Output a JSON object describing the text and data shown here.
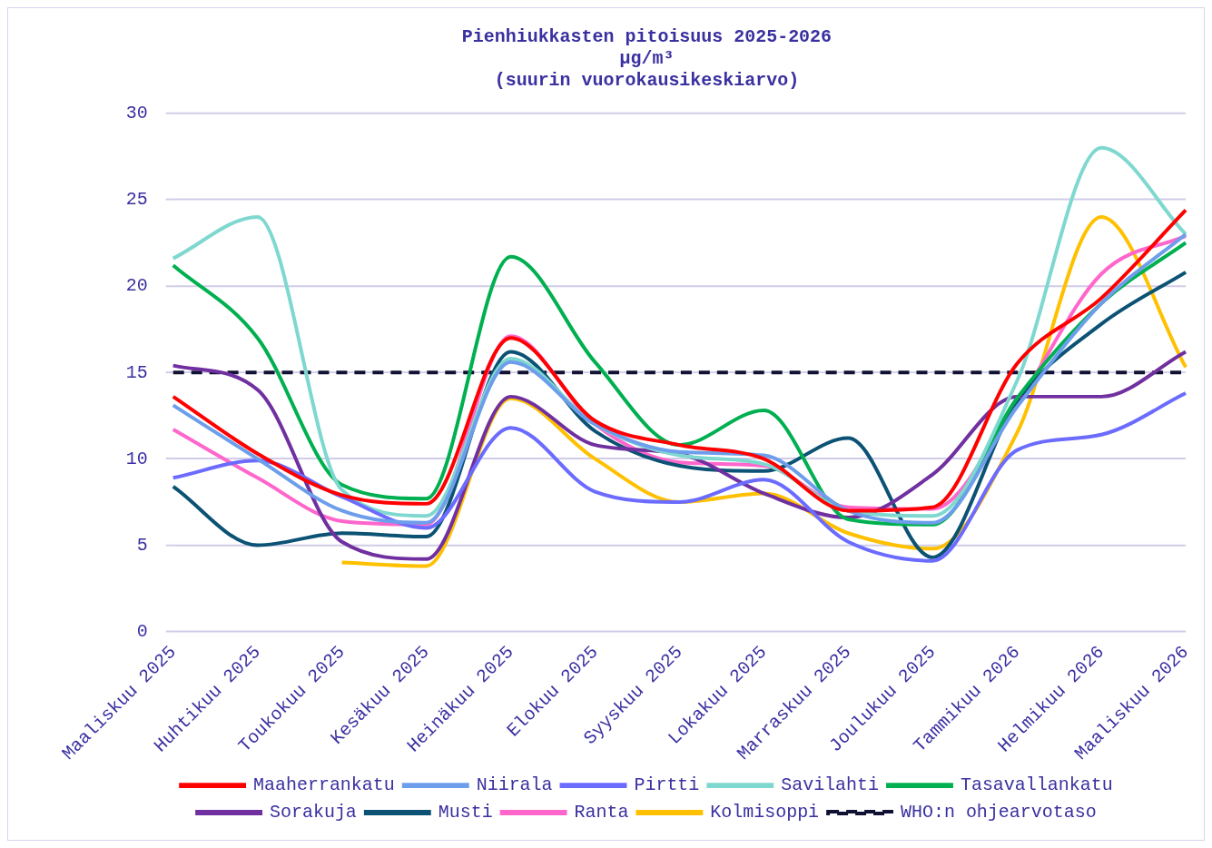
{
  "chart_data": {
    "type": "line",
    "title": "Pienhiukkasten pitoisuus 2025-2026",
    "subtitle": "µg/m³\n(suurin vuorokausikeskiarvo)",
    "categories": [
      "Maaliskuu 2025",
      "Huhtikuu 2025",
      "Toukokuu 2025",
      "Kesäkuu 2025",
      "Heinäkuu 2025",
      "Elokuu 2025",
      "Syyskuu 2025",
      "Lokakuu 2025",
      "Marraskuu 2025",
      "Joulukuu 2025",
      "Tammikuu 2026",
      "Helmikuu 2026",
      "Maaliskuu 2026"
    ],
    "series": [
      {
        "name": "Maaherrankatu",
        "color": "#ff0000",
        "values": [
          13.6,
          10.3,
          7.9,
          7.4,
          17.0,
          12.2,
          10.8,
          10.0,
          7.0,
          7.2,
          15.5,
          19.3,
          24.4
        ]
      },
      {
        "name": "Niirala",
        "color": "#6d9eeb",
        "values": [
          13.1,
          10.0,
          7.0,
          6.3,
          15.6,
          12.0,
          10.4,
          10.2,
          7.0,
          6.3,
          13.0,
          19.0,
          23.0
        ]
      },
      {
        "name": "Pirtti",
        "color": "#6b6bff",
        "values": [
          8.9,
          9.9,
          7.8,
          6.0,
          11.8,
          8.1,
          7.5,
          8.8,
          5.2,
          4.1,
          10.5,
          11.4,
          13.8
        ]
      },
      {
        "name": "Savilahti",
        "color": "#7fd8d0",
        "values": [
          21.6,
          24.0,
          8.2,
          6.7,
          15.8,
          12.0,
          10.2,
          9.7,
          7.0,
          6.7,
          14.5,
          28.0,
          23.0
        ]
      },
      {
        "name": "Tasavallankatu",
        "color": "#00b050",
        "values": [
          21.2,
          17.0,
          8.5,
          7.7,
          21.7,
          15.6,
          10.8,
          12.8,
          6.5,
          6.2,
          13.5,
          19.0,
          22.5
        ]
      },
      {
        "name": "Sorakuja",
        "color": "#7030a0",
        "values": [
          15.4,
          14.0,
          5.2,
          4.2,
          13.6,
          10.8,
          10.3,
          8.0,
          6.6,
          9.1,
          13.6,
          13.6,
          16.2
        ]
      },
      {
        "name": "Musti",
        "color": "#0b5274",
        "values": [
          8.4,
          5.0,
          5.7,
          5.5,
          16.2,
          11.6,
          9.6,
          9.3,
          11.2,
          4.3,
          13.3,
          17.8,
          20.8
        ]
      },
      {
        "name": "Ranta",
        "color": "#ff66cc",
        "values": [
          11.7,
          8.9,
          6.4,
          6.2,
          17.1,
          12.0,
          9.8,
          9.6,
          7.2,
          7.1,
          13.2,
          20.7,
          22.9
        ]
      },
      {
        "name": "Kolmisoppi",
        "color": "#ffc000",
        "values": [
          null,
          null,
          4.0,
          3.8,
          13.5,
          10.0,
          7.5,
          8.0,
          5.7,
          4.8,
          11.5,
          24.0,
          15.3
        ]
      },
      {
        "name": "WHO:n ohjearvotaso",
        "color": "#111133",
        "line_style": "dashed",
        "values": [
          15,
          15,
          15,
          15,
          15,
          15,
          15,
          15,
          15,
          15,
          15,
          15,
          15
        ]
      }
    ],
    "ylim": [
      0,
      30
    ],
    "yticks": [
      0,
      5,
      10,
      15,
      20,
      25,
      30
    ],
    "grid": "y",
    "legend": "bottom",
    "marker": "none",
    "line_style": "solid"
  }
}
